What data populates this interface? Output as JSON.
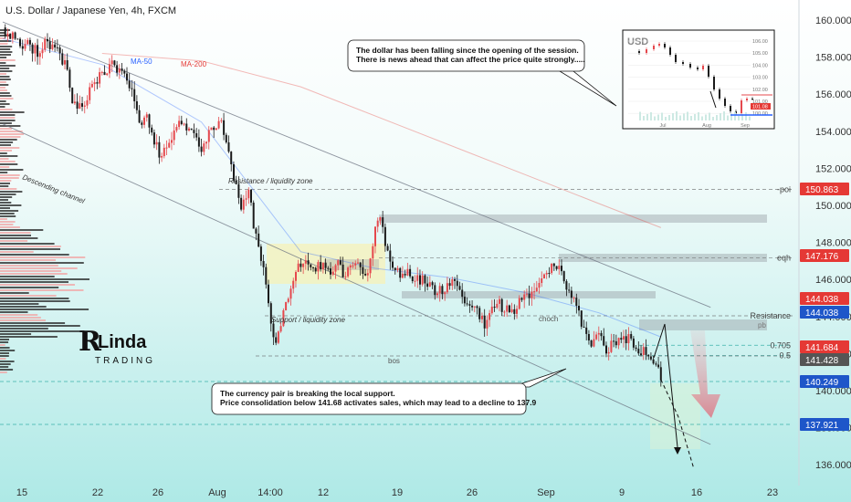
{
  "header": {
    "title": "U.S. Dollar / Japanese Yen, 4h, FXCM"
  },
  "logo": {
    "text_top": "Linda",
    "text_bottom": "TRADING"
  },
  "colors": {
    "up": "#e5484d",
    "down": "#1a1a1a",
    "ma50": "#2962ff",
    "ma200": "#e53935",
    "bg_top": "#ffffff",
    "bg_bottom": "#aee9e6",
    "badge_red": "#e53935",
    "badge_blue": "#1e56c9",
    "badge_gray": "#555555"
  },
  "chart_data": {
    "type": "candlestick",
    "title": "U.S. Dollar / Japanese Yen, 4h, FXCM",
    "ylim": [
      135.3,
      161.1
    ],
    "y_ticks": [
      136.0,
      138.0,
      140.0,
      142.0,
      144.0,
      146.0,
      148.0,
      150.0,
      152.0,
      154.0,
      156.0,
      158.0,
      160.0
    ],
    "x_ticks": [
      "15",
      "22",
      "26",
      "Aug",
      "14:00",
      "12",
      "19",
      "26",
      "Sep",
      "9",
      "16",
      "23"
    ],
    "legend": [
      "MA-50",
      "MA-200"
    ],
    "close_path": [
      [
        0,
        159.6
      ],
      [
        5,
        159.0
      ],
      [
        10,
        158.6
      ],
      [
        14,
        158.3
      ],
      [
        18,
        158.9
      ],
      [
        22,
        158.2
      ],
      [
        26,
        157.4
      ],
      [
        28,
        155.6
      ],
      [
        32,
        155.3
      ],
      [
        36,
        156.4
      ],
      [
        40,
        157.1
      ],
      [
        45,
        157.6
      ],
      [
        48,
        157.0
      ],
      [
        52,
        156.2
      ],
      [
        56,
        154.2
      ],
      [
        58,
        154.8
      ],
      [
        62,
        153.2
      ],
      [
        64,
        152.6
      ],
      [
        68,
        153.8
      ],
      [
        72,
        154.6
      ],
      [
        76,
        154.1
      ],
      [
        80,
        153.0
      ],
      [
        85,
        154.2
      ],
      [
        88,
        154.6
      ],
      [
        92,
        152.0
      ],
      [
        96,
        149.8
      ],
      [
        99,
        150.7
      ],
      [
        102,
        148.2
      ],
      [
        106,
        146.0
      ],
      [
        108,
        143.5
      ],
      [
        110,
        142.4
      ],
      [
        112,
        143.6
      ],
      [
        114,
        144.6
      ],
      [
        117,
        145.6
      ],
      [
        120,
        147.0
      ],
      [
        123,
        146.6
      ],
      [
        126,
        146.7
      ],
      [
        129,
        146.9
      ],
      [
        132,
        146.6
      ],
      [
        135,
        146.7
      ],
      [
        138,
        146.3
      ],
      [
        141,
        147.0
      ],
      [
        144,
        146.5
      ],
      [
        147,
        146.6
      ],
      [
        150,
        148.8
      ],
      [
        152,
        149.1
      ],
      [
        155,
        147.4
      ],
      [
        158,
        146.4
      ],
      [
        162,
        146.4
      ],
      [
        166,
        146.2
      ],
      [
        170,
        145.8
      ],
      [
        174,
        145.4
      ],
      [
        178,
        145.3
      ],
      [
        182,
        146.2
      ],
      [
        186,
        145.0
      ],
      [
        190,
        144.5
      ],
      [
        194,
        143.7
      ],
      [
        198,
        144.8
      ],
      [
        202,
        144.4
      ],
      [
        206,
        144.4
      ],
      [
        210,
        145.0
      ],
      [
        214,
        145.4
      ],
      [
        218,
        146.3
      ],
      [
        222,
        147.0
      ],
      [
        225,
        146.7
      ],
      [
        228,
        145.2
      ],
      [
        231,
        144.6
      ],
      [
        234,
        143.3
      ],
      [
        237,
        142.6
      ],
      [
        240,
        143.0
      ],
      [
        243,
        142.2
      ],
      [
        246,
        142.6
      ],
      [
        249,
        142.7
      ],
      [
        252,
        143.0
      ],
      [
        255,
        142.4
      ],
      [
        258,
        142.2
      ],
      [
        261,
        141.7
      ],
      [
        263,
        141.3
      ],
      [
        265,
        140.6
      ]
    ],
    "projection": [
      [
        265,
        140.6
      ],
      [
        272,
        138.6
      ],
      [
        278,
        135.9
      ]
    ],
    "ma50_path": [
      [
        0,
        159.0
      ],
      [
        40,
        157.6
      ],
      [
        80,
        154.5
      ],
      [
        100,
        151.0
      ],
      [
        120,
        147.5
      ],
      [
        150,
        146.6
      ],
      [
        180,
        146.1
      ],
      [
        210,
        145.3
      ],
      [
        240,
        144.2
      ],
      [
        265,
        142.9
      ]
    ],
    "ma200_path": [
      [
        40,
        158.2
      ],
      [
        80,
        157.8
      ],
      [
        120,
        156.4
      ],
      [
        160,
        154.3
      ],
      [
        200,
        152.2
      ],
      [
        240,
        150.1
      ],
      [
        265,
        148.8
      ]
    ],
    "channel_upper": [
      [
        0,
        159.9
      ],
      [
        285,
        144.5
      ]
    ],
    "channel_lower": [
      [
        0,
        154.4
      ],
      [
        285,
        137.1
      ]
    ],
    "levels": [
      {
        "label": "-poi",
        "price": 150.863
      },
      {
        "label": "eqh",
        "price": 147.176
      },
      {
        "label": "Resistance",
        "price": 144.038
      },
      {
        "label": "0.705",
        "price": 142.45
      },
      {
        "label": "0.5",
        "price": 141.9
      }
    ],
    "price_badges": [
      {
        "price": 150.863,
        "text": "150.863",
        "color": "red"
      },
      {
        "price": 147.176,
        "text": "147.176",
        "color": "red"
      },
      {
        "price": 144.038,
        "text": "144.038",
        "color": "red"
      },
      {
        "price": 144.038,
        "text": "144.038",
        "color": "blue"
      },
      {
        "price": 141.684,
        "text": "141.684",
        "color": "red"
      },
      {
        "price": 141.428,
        "text": "141.428",
        "color": "gray"
      },
      {
        "price": 140.249,
        "text": "140.249",
        "color": "blue"
      },
      {
        "price": 137.921,
        "text": "137.921",
        "color": "blue"
      }
    ],
    "annotations": [
      {
        "text": "Resistance / liquidity zone"
      },
      {
        "text": "Support / liquidity zone"
      },
      {
        "text": "Descending channel"
      },
      {
        "text": "choch"
      },
      {
        "text": "bos"
      },
      {
        "text": "pb"
      }
    ]
  },
  "callouts": {
    "top": [
      "The dollar has been falling since the opening of the session.",
      "There is news ahead that can affect the price quite strongly....."
    ],
    "bottom": [
      "The currency pair is breaking the local support.",
      "Price consolidation below 141.68 activates sales, which may lead to a decline to 137.9"
    ]
  },
  "inset": {
    "title": "USD",
    "y_ticks": [
      106.0,
      105.0,
      104.0,
      103.0,
      102.0,
      101.0,
      100.0
    ],
    "x_ticks": [
      "Jul",
      "Aug",
      "Sep"
    ],
    "last_label": "101.08"
  }
}
